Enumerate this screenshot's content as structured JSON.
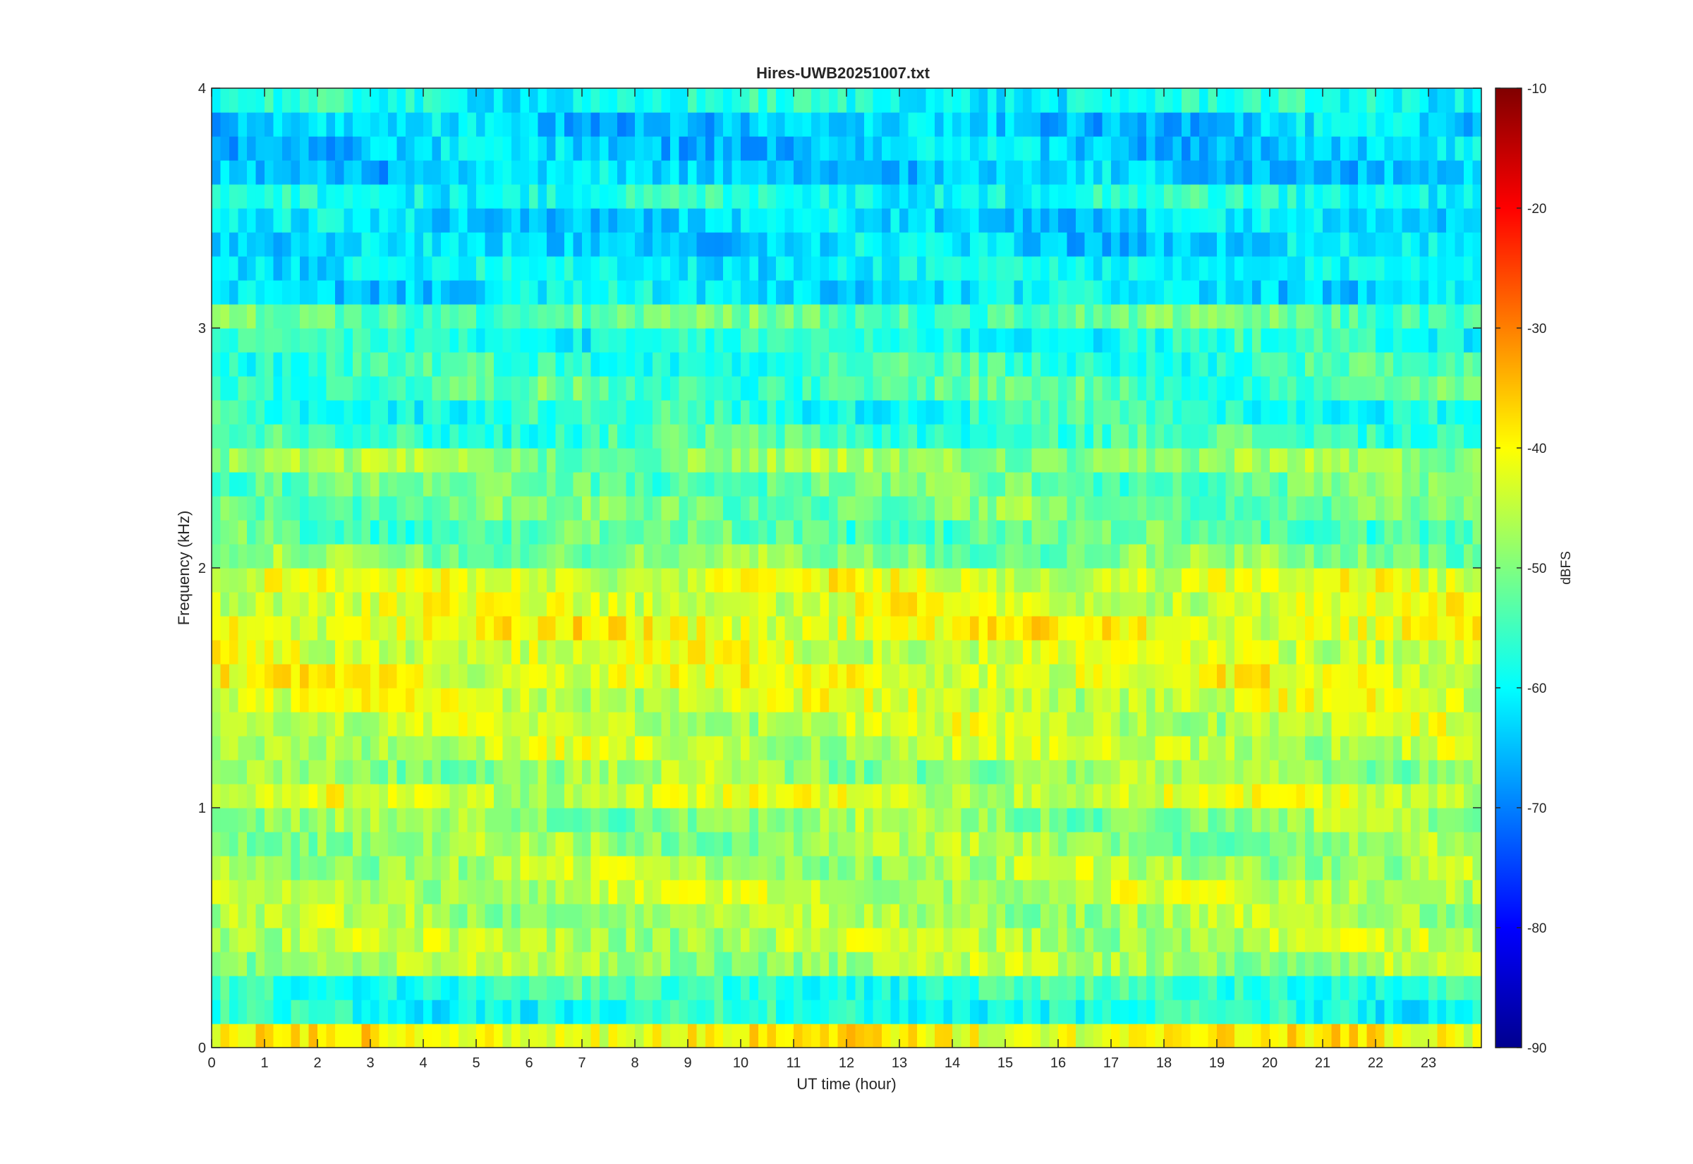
{
  "chart_data": {
    "type": "heatmap",
    "title": "Hires-UWB20251007.txt",
    "xlabel": "UT time (hour)",
    "ylabel": "Frequency (kHz)",
    "xlim": [
      0,
      24
    ],
    "ylim": [
      0,
      4
    ],
    "x_ticks": [
      "0",
      "1",
      "2",
      "3",
      "4",
      "5",
      "6",
      "7",
      "8",
      "9",
      "10",
      "11",
      "12",
      "13",
      "14",
      "15",
      "16",
      "17",
      "18",
      "19",
      "20",
      "21",
      "22",
      "23"
    ],
    "y_ticks": [
      "0",
      "1",
      "2",
      "3",
      "4"
    ],
    "colorbar": {
      "label": "dBFS",
      "range": [
        -90,
        -10
      ],
      "ticks": [
        "-10",
        "-20",
        "-30",
        "-40",
        "-50",
        "-60",
        "-70",
        "-80",
        "-90"
      ],
      "colormap": "jet"
    },
    "frequency_profile_khz_dbfs": [
      [
        0.05,
        -40
      ],
      [
        0.15,
        -58
      ],
      [
        0.25,
        -56
      ],
      [
        0.35,
        -47
      ],
      [
        0.45,
        -46
      ],
      [
        0.55,
        -47
      ],
      [
        0.65,
        -45
      ],
      [
        0.75,
        -47
      ],
      [
        0.85,
        -48
      ],
      [
        0.95,
        -49
      ],
      [
        1.05,
        -44
      ],
      [
        1.15,
        -48
      ],
      [
        1.25,
        -45
      ],
      [
        1.35,
        -45
      ],
      [
        1.45,
        -44
      ],
      [
        1.55,
        -42
      ],
      [
        1.65,
        -43
      ],
      [
        1.75,
        -41
      ],
      [
        1.85,
        -43
      ],
      [
        1.95,
        -43
      ],
      [
        2.05,
        -50
      ],
      [
        2.15,
        -53
      ],
      [
        2.25,
        -51
      ],
      [
        2.35,
        -52
      ],
      [
        2.45,
        -49
      ],
      [
        2.55,
        -55
      ],
      [
        2.65,
        -57
      ],
      [
        2.75,
        -54
      ],
      [
        2.85,
        -56
      ],
      [
        2.95,
        -58
      ],
      [
        3.05,
        -53
      ],
      [
        3.15,
        -62
      ],
      [
        3.25,
        -60
      ],
      [
        3.35,
        -63
      ],
      [
        3.45,
        -63
      ],
      [
        3.55,
        -58
      ],
      [
        3.65,
        -64
      ],
      [
        3.75,
        -64
      ],
      [
        3.85,
        -64
      ],
      [
        3.95,
        -59
      ]
    ]
  }
}
